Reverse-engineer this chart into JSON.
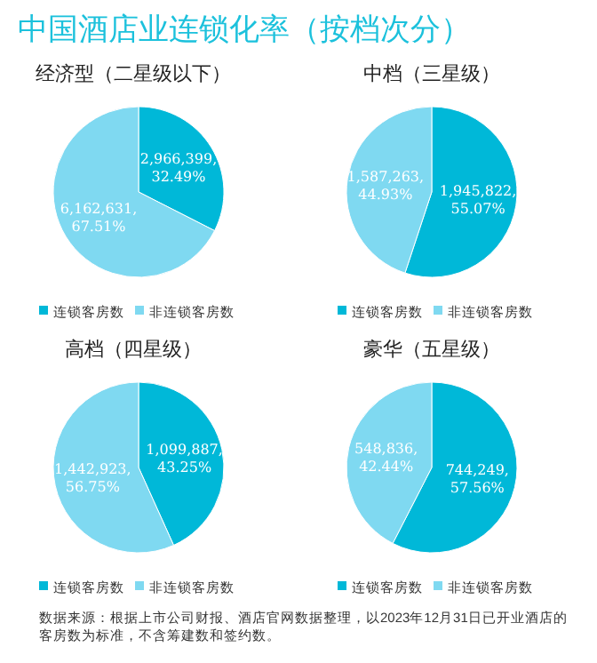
{
  "chart_data": [
    {
      "type": "other",
      "title": "中国酒店业连锁化率（按档次分）",
      "annotations": [
        "数据来源：根据上市公司财报、酒店官网数据整理，以2023年12月31日已开业酒店的客房数为标准，不含筹建数和签约数。"
      ]
    },
    {
      "type": "pie",
      "title": "经济型（二星级以下）",
      "categories": [
        "连锁客房数",
        "非连锁客房数"
      ],
      "values": [
        2966399,
        6162631
      ],
      "colors": [
        "#00b8d8",
        "#7fd9f1"
      ],
      "value_labels": [
        "2,966,399,\n32.49%",
        "6,162,631,\n67.51%"
      ],
      "legend": "bottom"
    },
    {
      "type": "pie",
      "title": "中档（三星级）",
      "categories": [
        "连锁客房数",
        "非连锁客房数"
      ],
      "values": [
        1945822,
        1587263
      ],
      "colors": [
        "#00b8d8",
        "#7fd9f1"
      ],
      "value_labels": [
        "1,945,822,\n55.07%",
        "1,587,263,\n44.93%"
      ],
      "legend": "bottom"
    },
    {
      "type": "pie",
      "title": "高档（四星级）",
      "categories": [
        "连锁客房数",
        "非连锁客房数"
      ],
      "values": [
        1099887,
        1442923
      ],
      "colors": [
        "#00b8d8",
        "#7fd9f1"
      ],
      "value_labels": [
        "1,099,887,\n43.25%",
        "1,442,923,\n56.75%"
      ],
      "legend": "bottom"
    },
    {
      "type": "pie",
      "title": "豪华（五星级）",
      "categories": [
        "连锁客房数",
        "非连锁客房数"
      ],
      "values": [
        744249,
        548836
      ],
      "colors": [
        "#00b8d8",
        "#7fd9f1"
      ],
      "value_labels": [
        "744,249,\n57.56%",
        "548,836,\n42.44%"
      ],
      "legend": "bottom"
    }
  ]
}
